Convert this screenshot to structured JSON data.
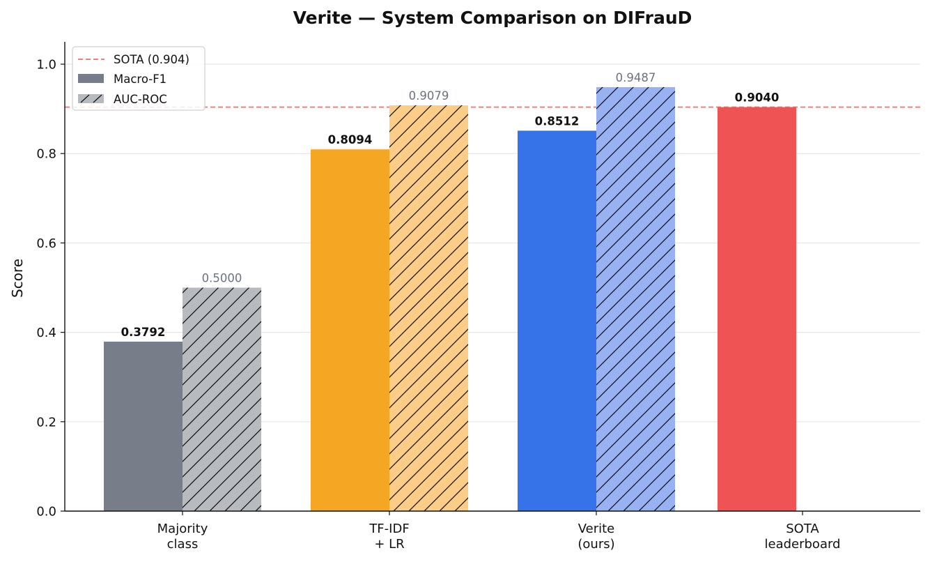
{
  "chart_data": {
    "type": "bar",
    "title": "Verite — System Comparison on DIFrauD",
    "xlabel": "",
    "ylabel": "Score",
    "ylim": [
      0,
      1.05
    ],
    "yticks": [
      "0.0",
      "0.2",
      "0.4",
      "0.6",
      "0.8",
      "1.0"
    ],
    "ytick_values": [
      0,
      0.2,
      0.4,
      0.6,
      0.8,
      1.0
    ],
    "grid": "horizontal",
    "categories": [
      [
        "Majority",
        "class"
      ],
      [
        "TF-IDF",
        "+ LR"
      ],
      [
        "Verite",
        "(ours)"
      ],
      [
        "SOTA",
        "leaderboard"
      ]
    ],
    "series": [
      {
        "name": "Macro-F1",
        "values": [
          0.3792,
          0.8094,
          0.8512,
          0.904
        ],
        "labels": [
          "0.3792",
          "0.8094",
          "0.8512",
          "0.9040"
        ],
        "colors": [
          "#777d89",
          "#f5a623",
          "#3672e8",
          "#ef5353"
        ],
        "hatch": false
      },
      {
        "name": "AUC-ROC",
        "values": [
          0.5,
          0.9079,
          0.9487,
          null
        ],
        "labels": [
          "0.5000",
          "0.9079",
          "0.9487",
          ""
        ],
        "colors": [
          "#b7babf",
          "#fbcd86",
          "#97b1f2",
          null
        ],
        "hatch": true
      }
    ],
    "reference_line": {
      "name": "SOTA (0.904)",
      "value": 0.904,
      "color": "#f08080",
      "style": "dashed"
    },
    "legend": {
      "placement": "top-left",
      "entries": [
        "SOTA (0.904)",
        "Macro-F1",
        "AUC-ROC"
      ],
      "swatch_colors": [
        "#f08080",
        "#777d89",
        "#b7babf"
      ]
    }
  }
}
